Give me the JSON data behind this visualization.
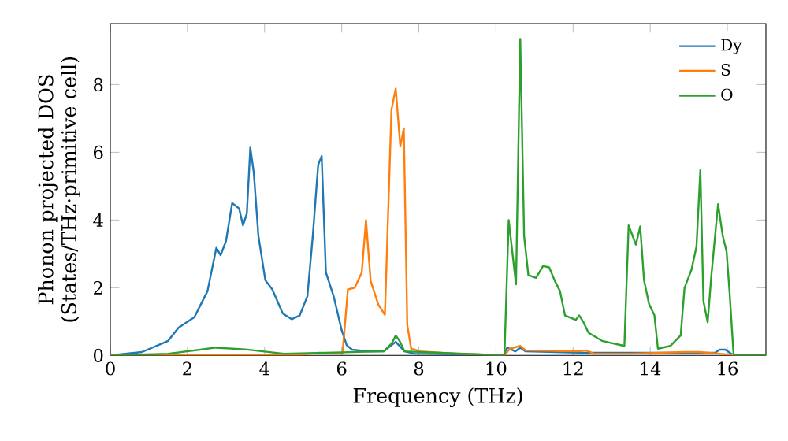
{
  "chart_data": {
    "type": "line",
    "xlabel": "Frequency (THz)",
    "ylabel": "Phonon projected DOS (States/THz·primitive cell)",
    "xlim": [
      0,
      17
    ],
    "ylim": [
      0,
      9.8
    ],
    "xticks": [
      0,
      2,
      4,
      6,
      8,
      10,
      12,
      14,
      16
    ],
    "yticks": [
      0,
      2,
      4,
      6,
      8
    ],
    "legend": "top right",
    "grid": false,
    "marker": "none",
    "line_style": "solid",
    "series": [
      {
        "name": "Dy",
        "color": "#1f77b4",
        "x": [
          0,
          0.82,
          1.5,
          1.77,
          2.18,
          2.52,
          2.75,
          2.86,
          3.0,
          3.16,
          3.34,
          3.44,
          3.54,
          3.63,
          3.72,
          3.84,
          4.02,
          4.2,
          4.47,
          4.7,
          4.91,
          5.11,
          5.25,
          5.39,
          5.48,
          5.59,
          5.79,
          6.0,
          6.13,
          6.27,
          6.68,
          7.09,
          7.4,
          7.63,
          7.9,
          10.2,
          10.29,
          10.5,
          10.63,
          10.77,
          12.13,
          13.36,
          13.77,
          15.68,
          15.8,
          15.95,
          16.16,
          17
        ],
        "values": [
          0,
          0.1,
          0.43,
          0.82,
          1.13,
          1.9,
          3.18,
          2.96,
          3.38,
          4.5,
          4.34,
          3.84,
          4.19,
          6.14,
          5.4,
          3.53,
          2.22,
          1.95,
          1.24,
          1.07,
          1.18,
          1.75,
          3.53,
          5.63,
          5.89,
          2.45,
          1.75,
          0.74,
          0.3,
          0.17,
          0.12,
          0.12,
          0.4,
          0.12,
          0.05,
          0.02,
          0.23,
          0.12,
          0.23,
          0.12,
          0.08,
          0.08,
          null,
          0.08,
          0.17,
          0.17,
          0,
          0
        ]
      },
      {
        "name": "S",
        "color": "#ff7f0e",
        "x": [
          0,
          4.9,
          5.4,
          6.02,
          6.16,
          6.34,
          6.52,
          6.63,
          6.75,
          6.95,
          7.12,
          7.29,
          7.4,
          7.52,
          7.61,
          7.7,
          7.8,
          8.04,
          9.0,
          10.22,
          10.36,
          10.63,
          10.77,
          12.13,
          12.34,
          12.54,
          13.5,
          14.86,
          15.26,
          15.8,
          16.22,
          17
        ],
        "values": [
          0,
          0.02,
          0.08,
          0.05,
          1.95,
          2.0,
          2.45,
          4.0,
          2.2,
          1.5,
          1.2,
          7.25,
          7.88,
          6.17,
          6.71,
          0.9,
          0.2,
          0.12,
          0.05,
          0,
          0.2,
          0.28,
          0.15,
          0.12,
          0.15,
          0.05,
          0.05,
          0.1,
          0.1,
          0.05,
          0,
          0
        ]
      },
      {
        "name": "O",
        "color": "#2ca02c",
        "x": [
          0,
          1.5,
          2.73,
          3.5,
          4.5,
          7.09,
          7.3,
          7.4,
          7.5,
          7.63,
          10.22,
          10.33,
          10.52,
          10.63,
          10.73,
          10.84,
          11.04,
          11.22,
          11.38,
          11.52,
          11.66,
          11.79,
          12.07,
          12.16,
          12.27,
          12.4,
          12.75,
          13.33,
          13.44,
          13.63,
          13.74,
          13.84,
          13.97,
          14.11,
          14.2,
          14.52,
          14.79,
          14.89,
          15.07,
          15.2,
          15.3,
          15.38,
          15.49,
          15.58,
          15.76,
          15.88,
          15.98,
          16.06,
          16.16,
          16.22,
          17
        ],
        "values": [
          0,
          0.05,
          0.23,
          0.18,
          0.05,
          0.12,
          0.36,
          0.59,
          0.43,
          0.12,
          0,
          4.0,
          2.1,
          9.35,
          3.53,
          2.37,
          2.29,
          2.64,
          2.6,
          2.22,
          1.9,
          1.18,
          1.05,
          1.18,
          0.98,
          0.67,
          0.43,
          0.28,
          3.84,
          3.27,
          3.81,
          2.22,
          1.52,
          1.18,
          0.2,
          0.28,
          0.59,
          2.0,
          2.53,
          3.22,
          5.47,
          1.6,
          0.98,
          2.29,
          4.47,
          3.53,
          3.07,
          1.83,
          0.05,
          0,
          0
        ]
      }
    ]
  }
}
